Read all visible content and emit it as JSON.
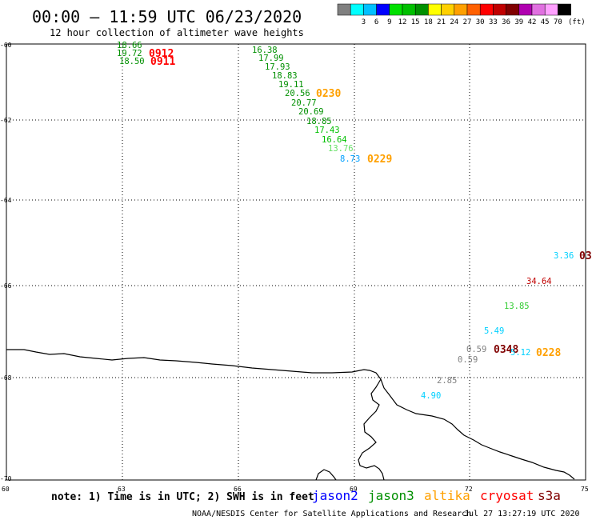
{
  "title": "00:00 – 11:59 UTC 06/23/2020",
  "subtitle": "12 hour collection of altimeter wave heights",
  "legend": {
    "unit": "(ft)",
    "swatches": [
      {
        "color": "#808080",
        "label": ""
      },
      {
        "color": "#00ffff",
        "label": "3"
      },
      {
        "color": "#00c0ff",
        "label": "6"
      },
      {
        "color": "#0000ff",
        "label": "9"
      },
      {
        "color": "#00e000",
        "label": "12"
      },
      {
        "color": "#00c000",
        "label": "15"
      },
      {
        "color": "#009000",
        "label": "18"
      },
      {
        "color": "#ffff00",
        "label": "21"
      },
      {
        "color": "#ffd000",
        "label": "24"
      },
      {
        "color": "#ffa000",
        "label": "27"
      },
      {
        "color": "#ff6000",
        "label": "30"
      },
      {
        "color": "#ff0000",
        "label": "33"
      },
      {
        "color": "#c00000",
        "label": "36"
      },
      {
        "color": "#800000",
        "label": "39"
      },
      {
        "color": "#b000b0",
        "label": "42"
      },
      {
        "color": "#e070e0",
        "label": "45"
      },
      {
        "color": "#ffa0ff",
        "label": "70"
      },
      {
        "color": "#000000",
        "label": ""
      }
    ]
  },
  "axes": {
    "lat_labels": [
      "-60",
      "-62",
      "-64",
      "-66",
      "-68",
      "-70"
    ],
    "lon_labels": [
      "60",
      "63",
      "66",
      "69",
      "72",
      "75"
    ]
  },
  "observations": [
    {
      "text": "18.66",
      "color": "#009000"
    },
    {
      "text": "19.72",
      "color": "#009000"
    },
    {
      "text": "18.50",
      "color": "#009000"
    },
    {
      "text": "0912",
      "color": "#ff0000"
    },
    {
      "text": "0911",
      "color": "#ff0000"
    },
    {
      "text": "16.38",
      "color": "#009000"
    },
    {
      "text": "17.99",
      "color": "#009000"
    },
    {
      "text": "17.93",
      "color": "#009000"
    },
    {
      "text": "18.83",
      "color": "#009000"
    },
    {
      "text": "19.11",
      "color": "#009000"
    },
    {
      "text": "20.56",
      "color": "#009000"
    },
    {
      "text": "0230",
      "color": "#ffa000"
    },
    {
      "text": "20.77",
      "color": "#009000"
    },
    {
      "text": "20.69",
      "color": "#009000"
    },
    {
      "text": "18.85",
      "color": "#009000"
    },
    {
      "text": "17.43",
      "color": "#00c000"
    },
    {
      "text": "16.64",
      "color": "#00c000"
    },
    {
      "text": "13.76",
      "color": "#66e066"
    },
    {
      "text": "8.73",
      "color": "#00a0ff"
    },
    {
      "text": "0229",
      "color": "#ffa000"
    },
    {
      "text": "3.36",
      "color": "#00d0ff"
    },
    {
      "text": "03",
      "color": "#800000"
    },
    {
      "text": "34.64",
      "color": "#c00000"
    },
    {
      "text": "13.85",
      "color": "#33cc33"
    },
    {
      "text": "5.49",
      "color": "#00d0ff"
    },
    {
      "text": "0.59",
      "color": "#808080"
    },
    {
      "text": "0348",
      "color": "#800000"
    },
    {
      "text": "5.12",
      "color": "#00d0ff"
    },
    {
      "text": "0228",
      "color": "#ffa000"
    },
    {
      "text": "0.59",
      "color": "#808080"
    },
    {
      "text": "2.85",
      "color": "#808080"
    },
    {
      "text": "4.90",
      "color": "#00d0ff"
    }
  ],
  "footer": {
    "note": "note: 1) Time is in UTC; 2) SWH is in feet",
    "satellites": [
      {
        "name": "jason2",
        "color": "#0000ff"
      },
      {
        "name": "jason3",
        "color": "#009000"
      },
      {
        "name": "altika",
        "color": "#ffa000"
      },
      {
        "name": "cryosat",
        "color": "#ff0000"
      },
      {
        "name": "s3a",
        "color": "#800000"
      }
    ],
    "credit": "NOAA/NESDIS Center for Satellite Applications and Research",
    "timestamp": "Jul 27 13:27:19 UTC 2020"
  }
}
